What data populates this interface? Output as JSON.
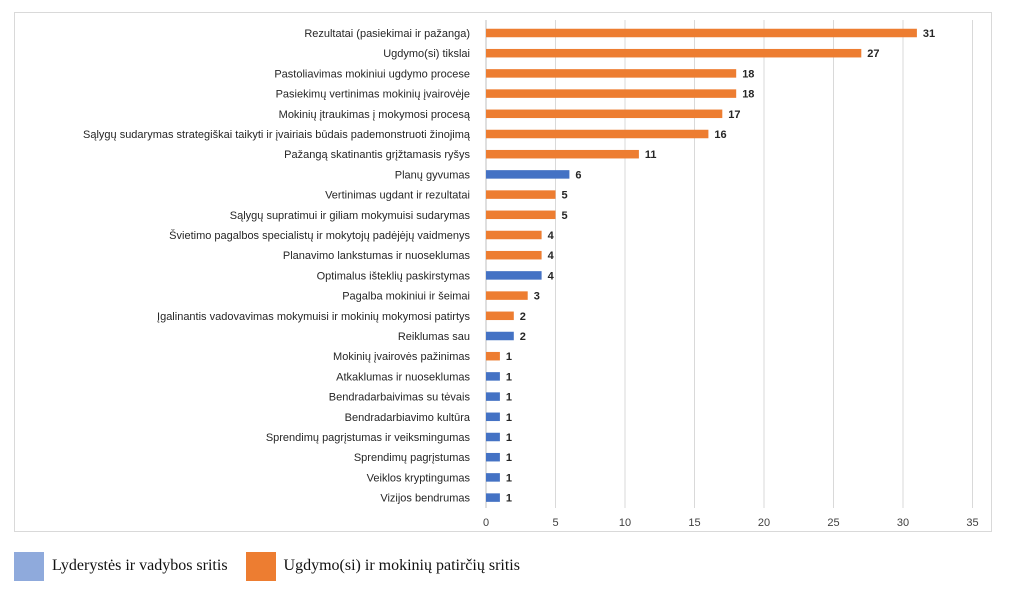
{
  "chart_data": {
    "type": "bar",
    "orientation": "horizontal",
    "xlim": [
      0,
      35
    ],
    "xticks": [
      0,
      5,
      10,
      15,
      20,
      25,
      30,
      35
    ],
    "grid": "vertical",
    "legend_placement": "bottom-left",
    "series": [
      {
        "name": "Lyderystės ir vadybos sritis",
        "color": "#4472c4",
        "legend_color": "#8faadc"
      },
      {
        "name": "Ugdymo(si) ir mokinių patirčių sritis",
        "color": "#ed7d31",
        "legend_color": "#ed7d31"
      }
    ],
    "bars": [
      {
        "category": "Rezultatai (pasiekimai ir pažanga)",
        "value": 31,
        "series": 1
      },
      {
        "category": "Ugdymo(si) tikslai",
        "value": 27,
        "series": 1
      },
      {
        "category": "Pastoliavimas mokiniui ugdymo procese",
        "value": 18,
        "series": 1
      },
      {
        "category": "Pasiekimų vertinimas mokinių įvairovėje",
        "value": 18,
        "series": 1
      },
      {
        "category": "Mokinių įtraukimas į mokymosi procesą",
        "value": 17,
        "series": 1
      },
      {
        "category": "Sąlygų sudarymas strategiškai taikyti ir įvairiais būdais pademonstruoti žinojimą",
        "value": 16,
        "series": 1
      },
      {
        "category": "Pažangą skatinantis grįžtamasis ryšys",
        "value": 11,
        "series": 1
      },
      {
        "category": "Planų gyvumas",
        "value": 6,
        "series": 0
      },
      {
        "category": "Vertinimas ugdant ir rezultatai",
        "value": 5,
        "series": 1
      },
      {
        "category": "Sąlygų supratimui ir giliam mokymuisi sudarymas",
        "value": 5,
        "series": 1
      },
      {
        "category": "Švietimo pagalbos specialistų ir mokytojų padėjėjų vaidmenys",
        "value": 4,
        "series": 1
      },
      {
        "category": "Planavimo lankstumas ir nuoseklumas",
        "value": 4,
        "series": 1
      },
      {
        "category": "Optimalus išteklių paskirstymas",
        "value": 4,
        "series": 0
      },
      {
        "category": "Pagalba mokiniui ir šeimai",
        "value": 3,
        "series": 1
      },
      {
        "category": "Įgalinantis vadovavimas mokymuisi ir mokinių mokymosi patirtys",
        "value": 2,
        "series": 1
      },
      {
        "category": "Reiklumas sau",
        "value": 2,
        "series": 0
      },
      {
        "category": "Mokinių įvairovės pažinimas",
        "value": 1,
        "series": 1
      },
      {
        "category": "Atkaklumas ir nuoseklumas",
        "value": 1,
        "series": 0
      },
      {
        "category": "Bendradarbaivimas su tėvais",
        "value": 1,
        "series": 0
      },
      {
        "category": "Bendradarbiavimo kultūra",
        "value": 1,
        "series": 0
      },
      {
        "category": "Sprendimų pagrįstumas ir veiksmingumas",
        "value": 1,
        "series": 0
      },
      {
        "category": "Sprendimų pagrįstumas",
        "value": 1,
        "series": 0
      },
      {
        "category": "Veiklos kryptingumas",
        "value": 1,
        "series": 0
      },
      {
        "category": "Vizijos bendrumas",
        "value": 1,
        "series": 0
      }
    ]
  }
}
